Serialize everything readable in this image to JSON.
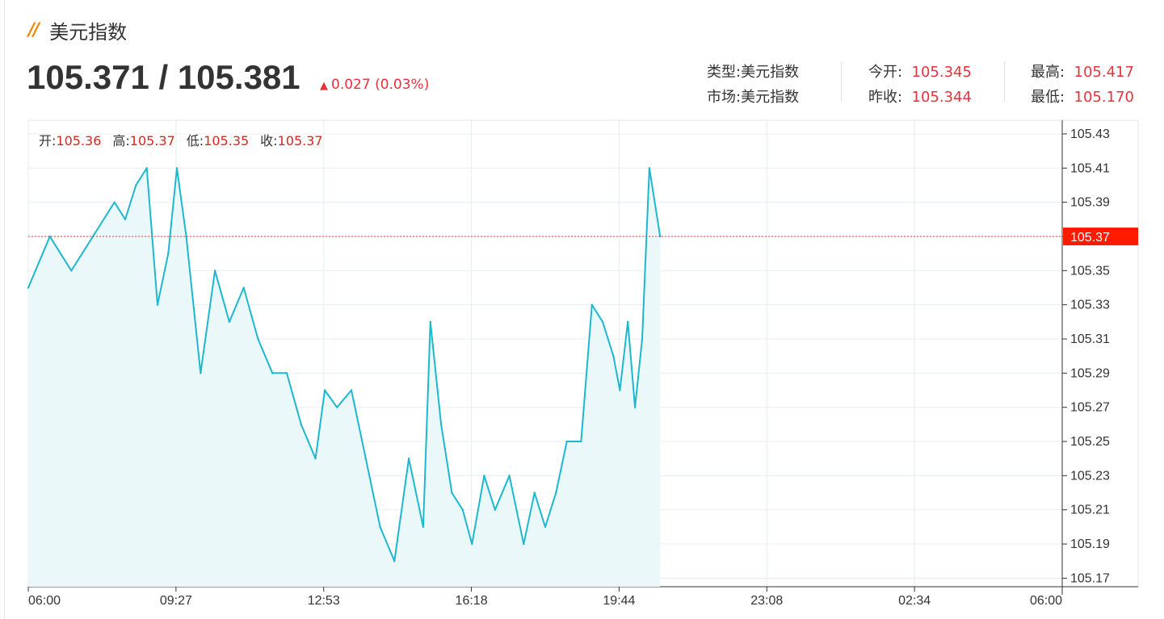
{
  "header": {
    "title": "美元指数",
    "icon": "double-slash-icon"
  },
  "quote": {
    "price": "105.371 / 105.381",
    "change": "0.027 (0.03%)"
  },
  "info": {
    "type_label": "类型:",
    "type_value": "美元指数",
    "market_label": "市场:",
    "market_value": "美元指数",
    "open_label": "今开:",
    "open_value": "105.345",
    "prev_close_label": "昨收:",
    "prev_close_value": "105.344",
    "high_label": "最高:",
    "high_value": "105.417",
    "low_label": "最低:",
    "low_value": "105.170"
  },
  "ohlc": {
    "open_label": "开:",
    "open_value": "105.36",
    "high_label": "高:",
    "high_value": "105.37",
    "low_label": "低:",
    "low_value": "105.35",
    "close_label": "收:",
    "close_value": "105.37"
  },
  "colors": {
    "line": "#1db8d0",
    "fill": "#eaf8fa",
    "up": "#e8323c",
    "current_badge": "#ff1a00"
  },
  "chart_data": {
    "type": "area",
    "x_ticks": [
      "06:00",
      "09:27",
      "12:53",
      "16:18",
      "19:44",
      "23:08",
      "02:34",
      "06:00"
    ],
    "y_ticks": [
      "105.43",
      "105.41",
      "105.39",
      "105.37",
      "105.35",
      "105.33",
      "105.31",
      "105.29",
      "105.27",
      "105.25",
      "105.23",
      "105.21",
      "105.19",
      "105.17"
    ],
    "ylim": [
      105.165,
      105.438
    ],
    "current_value": "105.37",
    "current_line": 105.37,
    "grid": true,
    "series": [
      {
        "x": [
          "06:00",
          "06:30",
          "07:00",
          "07:30",
          "08:00",
          "08:15",
          "08:30",
          "08:45",
          "09:00",
          "09:15",
          "09:27",
          "09:40",
          "10:00",
          "10:20",
          "10:40",
          "11:00",
          "11:20",
          "11:40",
          "12:00",
          "12:20",
          "12:40",
          "12:53",
          "13:10",
          "13:30",
          "13:50",
          "14:10",
          "14:30",
          "14:50",
          "15:10",
          "15:20",
          "15:35",
          "15:50",
          "16:05",
          "16:18",
          "16:35",
          "16:50",
          "17:10",
          "17:30",
          "17:45",
          "18:00",
          "18:15",
          "18:30",
          "18:50",
          "19:05",
          "19:20",
          "19:35",
          "19:44",
          "19:55",
          "20:05",
          "20:15",
          "20:25",
          "20:40"
        ],
        "y": [
          105.34,
          105.37,
          105.35,
          105.37,
          105.39,
          105.38,
          105.4,
          105.41,
          105.33,
          105.36,
          105.41,
          105.37,
          105.29,
          105.35,
          105.32,
          105.34,
          105.31,
          105.29,
          105.29,
          105.26,
          105.24,
          105.28,
          105.27,
          105.28,
          105.24,
          105.2,
          105.18,
          105.24,
          105.2,
          105.32,
          105.26,
          105.22,
          105.21,
          105.19,
          105.23,
          105.21,
          105.23,
          105.19,
          105.22,
          105.2,
          105.22,
          105.25,
          105.25,
          105.33,
          105.32,
          105.3,
          105.28,
          105.32,
          105.27,
          105.31,
          105.41,
          105.37
        ]
      }
    ]
  }
}
